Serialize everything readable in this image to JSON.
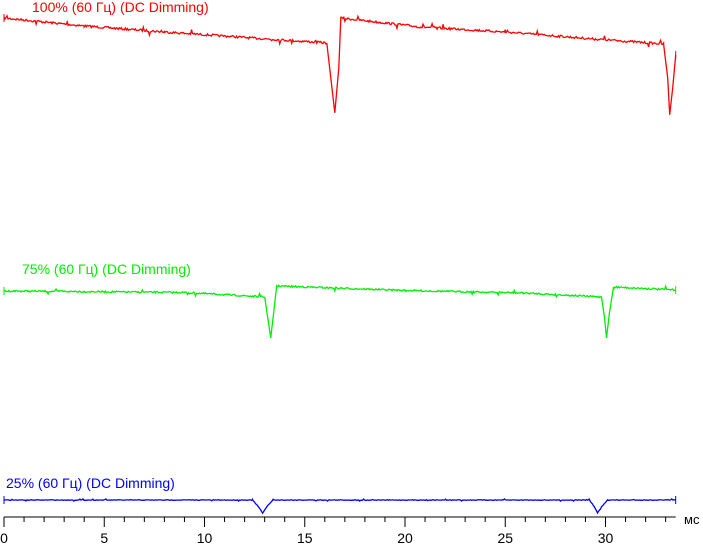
{
  "chart_data": {
    "type": "line",
    "title": "",
    "xlabel": "мс",
    "ylabel": "",
    "xlim": [
      0,
      33.5
    ],
    "ylim": [
      0,
      100
    ],
    "x_ticks": [
      0,
      5,
      10,
      15,
      20,
      25,
      30
    ],
    "x_tick_labels": [
      "0",
      "5",
      "10",
      "15",
      "20",
      "25",
      "30"
    ],
    "minor_tick_step": 1,
    "grid": false,
    "legend": "none",
    "series": [
      {
        "name": "100% (60 Гц) (DC Dimming)",
        "color": "#ff0000",
        "points": [
          [
            0,
            100
          ],
          [
            4,
            98.4
          ],
          [
            8,
            97.2
          ],
          [
            12.4,
            96
          ],
          [
            16.1,
            95
          ],
          [
            16.3,
            88
          ],
          [
            16.5,
            81
          ],
          [
            16.7,
            90
          ],
          [
            16.8,
            100
          ],
          [
            20.8,
            98.2
          ],
          [
            25,
            97.2
          ],
          [
            29.4,
            95.8
          ],
          [
            32.9,
            94.8
          ],
          [
            33.1,
            88
          ],
          [
            33.2,
            80.6
          ],
          [
            33.35,
            86
          ],
          [
            33.5,
            92.6
          ]
        ]
      },
      {
        "name": "75% (60 Гц) (DC Dimming)",
        "color": "#00ee00",
        "points": [
          [
            0,
            45.3
          ],
          [
            9,
            45
          ],
          [
            13,
            44.1
          ],
          [
            13.15,
            40
          ],
          [
            13.3,
            35.9
          ],
          [
            13.45,
            41
          ],
          [
            13.6,
            46.3
          ],
          [
            20,
            45.4
          ],
          [
            25.9,
            44.9
          ],
          [
            29.8,
            44.1
          ],
          [
            29.95,
            40
          ],
          [
            30.05,
            35.9
          ],
          [
            30.2,
            41
          ],
          [
            30.4,
            46.1
          ],
          [
            33.5,
            45.5
          ]
        ]
      },
      {
        "name": "25% (60 Гц) (DC Dimming)",
        "color": "#0000ff",
        "points": [
          [
            0,
            3.4
          ],
          [
            12.4,
            3.4
          ],
          [
            12.7,
            2
          ],
          [
            12.9,
            0.8
          ],
          [
            13.1,
            2
          ],
          [
            13.4,
            3.4
          ],
          [
            29.2,
            3.4
          ],
          [
            29.45,
            2
          ],
          [
            29.6,
            0.8
          ],
          [
            29.8,
            2
          ],
          [
            30.1,
            3.4
          ],
          [
            33.5,
            3.4
          ]
        ]
      }
    ]
  }
}
